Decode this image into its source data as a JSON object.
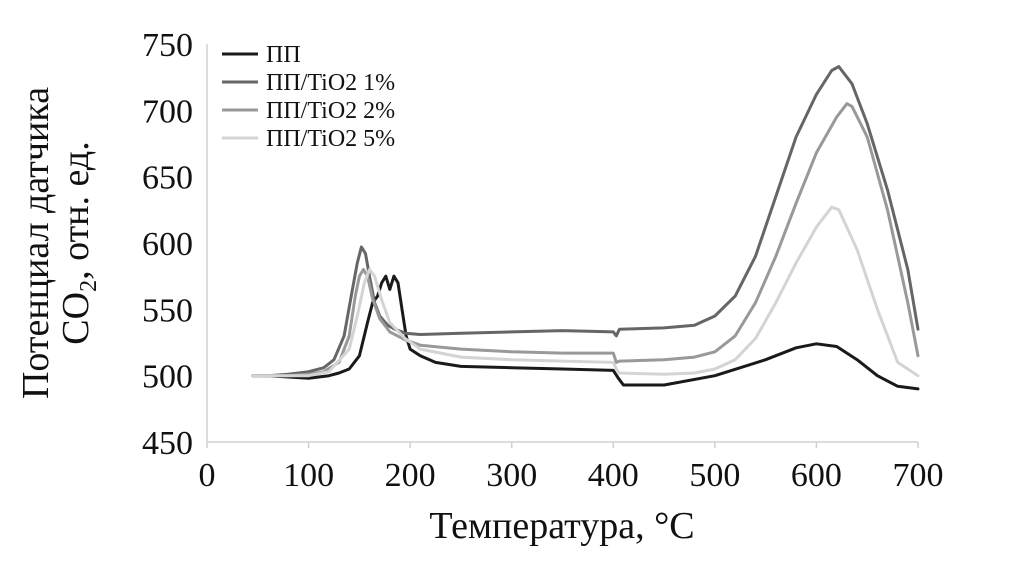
{
  "chart_data": {
    "type": "line",
    "xlabel": "Температура, °С",
    "ylabel_line1": "Потенциал датчика",
    "ylabel_co": "CO",
    "ylabel_sub": "2",
    "ylabel_rest": ", отн. ед.",
    "xlim": [
      0,
      700
    ],
    "ylim": [
      450,
      750
    ],
    "xticks": [
      "0",
      "100",
      "200",
      "300",
      "400",
      "500",
      "600",
      "700"
    ],
    "yticks": [
      "450",
      "500",
      "550",
      "600",
      "650",
      "700",
      "750"
    ],
    "grid": false,
    "legend_position": "top-left",
    "series": [
      {
        "name": "ПП",
        "color": "#1a1a1a",
        "x": [
          45,
          60,
          80,
          100,
          110,
          120,
          130,
          140,
          150,
          158,
          163,
          168,
          172,
          176,
          180,
          184,
          188,
          192,
          196,
          200,
          210,
          225,
          250,
          300,
          350,
          400,
          405,
          410,
          450,
          500,
          550,
          580,
          600,
          620,
          640,
          660,
          680,
          700
        ],
        "y": [
          500,
          500,
          499,
          498,
          499,
          500,
          502,
          505,
          515,
          540,
          555,
          560,
          570,
          575,
          565,
          575,
          570,
          550,
          530,
          520,
          515,
          510,
          507,
          506,
          505,
          504,
          498,
          493,
          493,
          500,
          512,
          521,
          524,
          522,
          512,
          500,
          492,
          490
        ]
      },
      {
        "name": "ПП/TiO2 1%",
        "color": "#666666",
        "x": [
          45,
          60,
          80,
          100,
          115,
          125,
          135,
          142,
          148,
          152,
          156,
          160,
          165,
          170,
          178,
          185,
          195,
          210,
          250,
          300,
          350,
          400,
          403,
          406,
          450,
          480,
          500,
          520,
          540,
          560,
          580,
          600,
          615,
          622,
          635,
          650,
          670,
          690,
          700
        ],
        "y": [
          500,
          500,
          501,
          503,
          506,
          512,
          530,
          560,
          585,
          597,
          592,
          575,
          555,
          545,
          538,
          535,
          532,
          531,
          532,
          533,
          534,
          533,
          530,
          535,
          536,
          538,
          545,
          560,
          590,
          635,
          680,
          712,
          730,
          733,
          720,
          690,
          640,
          580,
          535
        ]
      },
      {
        "name": "ПП/TiO2 2%",
        "color": "#999999",
        "x": [
          45,
          60,
          80,
          100,
          115,
          130,
          140,
          146,
          150,
          154,
          158,
          163,
          170,
          180,
          195,
          210,
          250,
          300,
          350,
          400,
          403,
          406,
          450,
          480,
          500,
          520,
          540,
          560,
          580,
          600,
          620,
          630,
          635,
          650,
          670,
          690,
          700
        ],
        "y": [
          500,
          500,
          500,
          501,
          503,
          510,
          530,
          560,
          575,
          580,
          575,
          558,
          543,
          533,
          527,
          523,
          520,
          518,
          517,
          517,
          510,
          511,
          512,
          514,
          518,
          530,
          555,
          590,
          630,
          668,
          695,
          705,
          703,
          680,
          625,
          555,
          515
        ]
      },
      {
        "name": "ПП/TiO2 5%",
        "color": "#d4d4d4",
        "x": [
          45,
          60,
          80,
          100,
          120,
          140,
          148,
          155,
          160,
          165,
          172,
          180,
          195,
          210,
          250,
          300,
          350,
          400,
          403,
          406,
          450,
          480,
          500,
          520,
          540,
          560,
          580,
          600,
          615,
          622,
          640,
          660,
          680,
          700
        ],
        "y": [
          500,
          500,
          500,
          500,
          503,
          520,
          545,
          570,
          580,
          575,
          557,
          540,
          528,
          520,
          514,
          512,
          511,
          510,
          505,
          502,
          501,
          502,
          505,
          512,
          528,
          555,
          585,
          612,
          627,
          625,
          595,
          550,
          510,
          500
        ]
      }
    ]
  }
}
